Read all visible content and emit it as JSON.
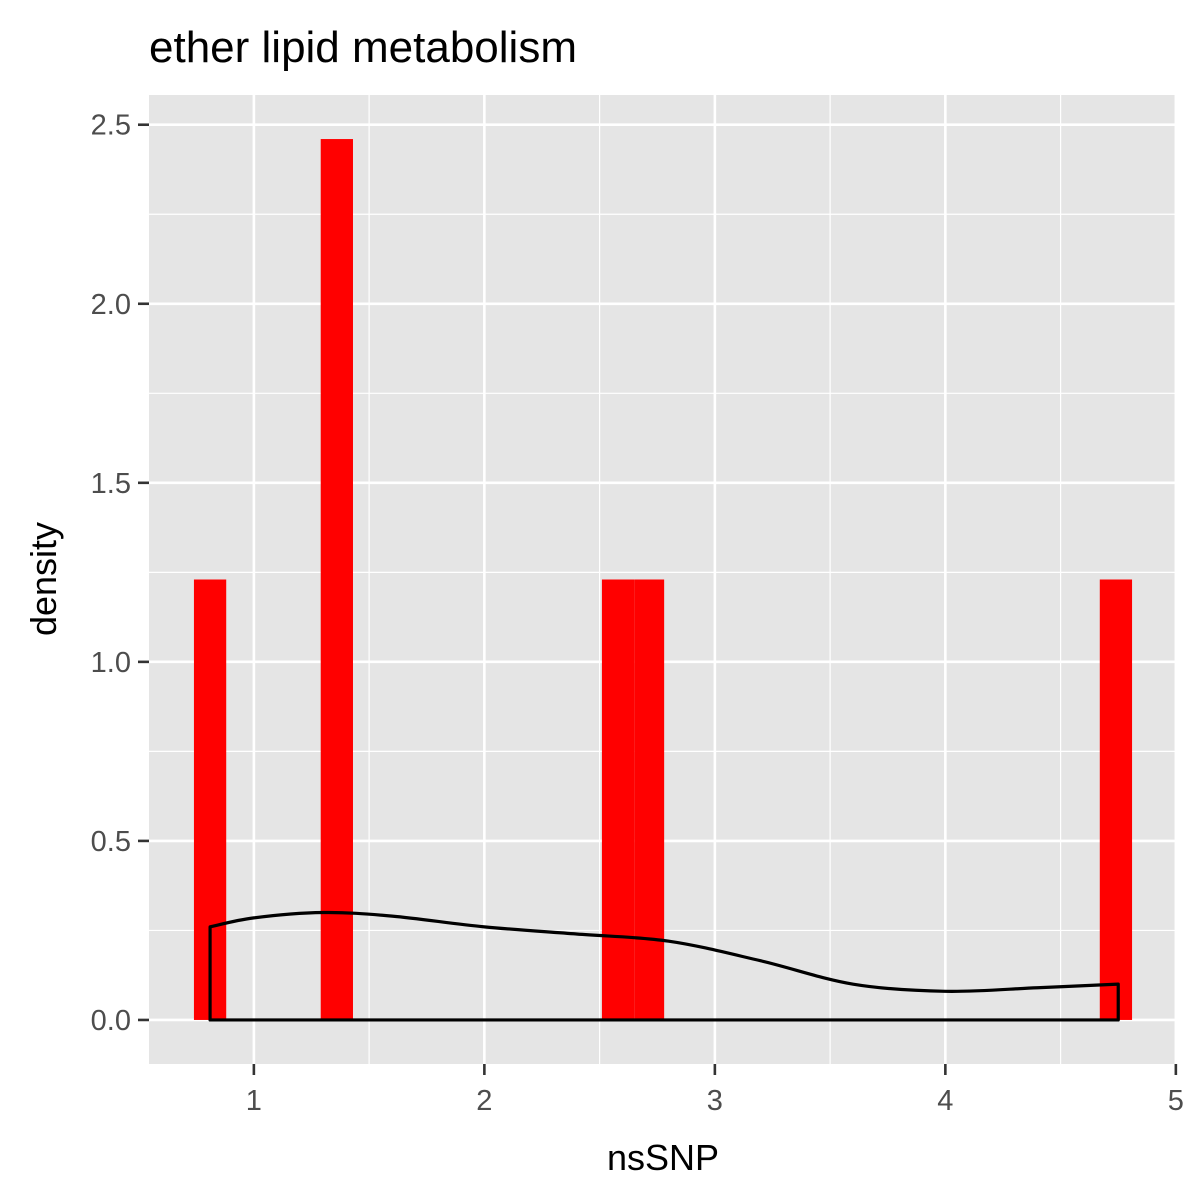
{
  "chart_data": {
    "type": "histogram",
    "title": "ether lipid metabolism",
    "xlabel": "nsSNP",
    "ylabel": "density",
    "xlim": [
      0.545,
      5.005
    ],
    "ylim": [
      -0.123,
      2.583
    ],
    "x_ticks": [
      1,
      2,
      3,
      4,
      5
    ],
    "y_ticks": [
      0.0,
      0.5,
      1.0,
      1.5,
      2.0,
      2.5
    ],
    "x_tick_labels": [
      "1",
      "2",
      "3",
      "4",
      "5"
    ],
    "y_tick_labels": [
      "0.0",
      "0.5",
      "1.0",
      "1.5",
      "2.0",
      "2.5"
    ],
    "grid": true,
    "bars": [
      {
        "x0": 0.74,
        "x1": 0.88,
        "density": 1.23
      },
      {
        "x0": 1.29,
        "x1": 1.43,
        "density": 2.46
      },
      {
        "x0": 2.51,
        "x1": 2.65,
        "density": 1.23
      },
      {
        "x0": 2.65,
        "x1": 2.78,
        "density": 1.23
      },
      {
        "x0": 4.67,
        "x1": 4.81,
        "density": 1.23
      }
    ],
    "density_curve": {
      "x": [
        0.81,
        1.0,
        1.3,
        1.6,
        2.0,
        2.4,
        2.8,
        3.2,
        3.6,
        4.0,
        4.4,
        4.75
      ],
      "y": [
        0.26,
        0.285,
        0.3,
        0.29,
        0.26,
        0.24,
        0.22,
        0.165,
        0.1,
        0.08,
        0.09,
        0.1
      ]
    },
    "colors": {
      "bar_fill": "#ff0000",
      "panel_background": "#e5e5e5",
      "grid_major": "#ffffff",
      "density_line": "#000000"
    }
  }
}
